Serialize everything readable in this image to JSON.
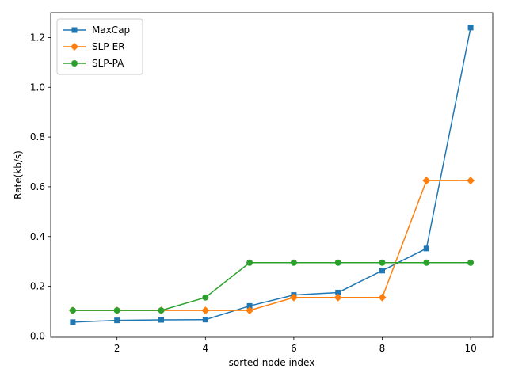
{
  "chart_data": {
    "type": "line",
    "xlabel": "sorted node index",
    "ylabel": "Rate(kb/s)",
    "xlim": [
      0.5,
      10.5
    ],
    "ylim": [
      -0.005,
      1.3
    ],
    "xticks": [
      2,
      4,
      6,
      8,
      10
    ],
    "yticks": [
      0.0,
      0.2,
      0.4,
      0.6,
      0.8,
      1.0,
      1.2
    ],
    "grid": false,
    "legend_position": "top-left",
    "x": [
      1,
      2,
      3,
      4,
      5,
      6,
      7,
      8,
      9,
      10
    ],
    "series": [
      {
        "name": "MaxCap",
        "color": "#1f77b4",
        "marker": "square",
        "values": [
          0.056,
          0.063,
          0.065,
          0.066,
          0.121,
          0.165,
          0.175,
          0.263,
          0.352,
          1.24
        ]
      },
      {
        "name": "SLP-ER",
        "color": "#ff7f0e",
        "marker": "diamond",
        "values": [
          0.103,
          0.103,
          0.103,
          0.103,
          0.103,
          0.155,
          0.155,
          0.155,
          0.625,
          0.625
        ]
      },
      {
        "name": "SLP-PA",
        "color": "#2ca02c",
        "marker": "circle",
        "values": [
          0.103,
          0.103,
          0.103,
          0.155,
          0.295,
          0.295,
          0.295,
          0.295,
          0.295,
          0.295
        ]
      }
    ]
  }
}
